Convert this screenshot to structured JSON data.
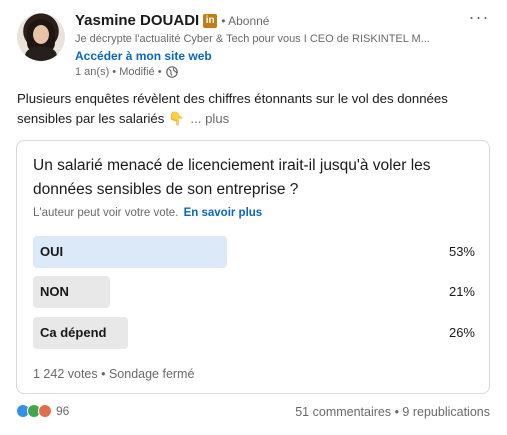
{
  "author": {
    "name": "Yasmine DOUADI",
    "badge": "in",
    "follow_state": "• Abonné",
    "headline": "Je décrypte l'actualité Cyber & Tech pour vous I CEO de RISKINTEL M...",
    "website_link": "Accéder à mon site web",
    "meta": "1 an(s) • Modifié •"
  },
  "menu": {
    "more_label": "···"
  },
  "post": {
    "text": "Plusieurs enquêtes révèlent des chiffres étonnants sur le vol des données sensibles par les salariés 👇",
    "see_more": "... plus"
  },
  "poll": {
    "question": "Un salarié menacé de licenciement irait-il jusqu'à voler les données sensibles de son entreprise ?",
    "note": "L'auteur peut voir votre vote.",
    "note_link": "En savoir plus",
    "options": [
      {
        "label": "OUI",
        "percent_text": "53%",
        "percent": 53
      },
      {
        "label": "NON",
        "percent_text": "21%",
        "percent": 21
      },
      {
        "label": "Ca dépend",
        "percent_text": "26%",
        "percent": 26
      }
    ],
    "footer": "1 242 votes • Sondage fermé"
  },
  "social": {
    "reaction_count": "96",
    "reactions": [
      "like-icon",
      "celebrate-icon",
      "love-icon"
    ],
    "comments_reposts": "51 commentaires • 9 republications"
  },
  "colors": {
    "link": "#0a66c2",
    "winner_fill": "#dbe9f9",
    "option_fill": "#e8e8e8"
  }
}
